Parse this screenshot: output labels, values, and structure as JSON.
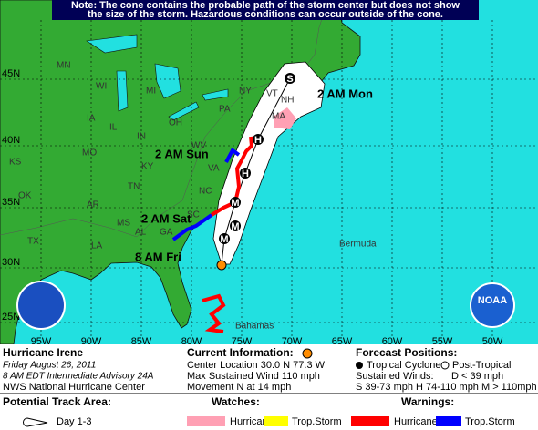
{
  "note": [
    "Note: The cone contains the probable path of the storm center but does not show",
    "the size of the storm. Hazardous conditions can occur outside of the cone."
  ],
  "map": {
    "lat_labels": [
      "45N",
      "40N",
      "35N",
      "30N",
      "25N"
    ],
    "lon_labels": [
      "95W",
      "90W",
      "85W",
      "80W",
      "75W",
      "70W",
      "65W",
      "60W",
      "55W",
      "50W"
    ],
    "states": [
      "MN",
      "WI",
      "MI",
      "IA",
      "IL",
      "IN",
      "OH",
      "PA",
      "NY",
      "VT",
      "NH",
      "MA",
      "KS",
      "MO",
      "KY",
      "WV",
      "VA",
      "TN",
      "NC",
      "OK",
      "AR",
      "MS",
      "AL",
      "GA",
      "SC",
      "LA",
      "TX"
    ],
    "times": [
      "2 AM Mon",
      "2 AM Sun",
      "2 AM Sat",
      "8 AM Fri"
    ],
    "places": [
      "Bermuda",
      "Bahamas"
    ],
    "track_points": [
      "M",
      "M",
      "M",
      "H",
      "H",
      "S"
    ],
    "noaa": "NOAA"
  },
  "storm": {
    "name": "Hurricane Irene",
    "date": "Friday   August 26, 2011",
    "advisory": "8 AM EDT Intermediate Advisory 24A",
    "center": "NWS National Hurricane Center"
  },
  "current": {
    "title": "Current Information:",
    "lines": [
      "Center Location 30.0 N  77.3 W",
      "Max Sustained Wind  110 mph",
      "Movement N at  14 mph"
    ]
  },
  "forecast": {
    "title": "Forecast Positions:",
    "tropical": "Tropical Cyclone",
    "post": "Post-Tropical",
    "winds": "Sustained Winds:",
    "d": "D  < 39 mph",
    "shm": "S  39-73 mph  H  74-110 mph  M  > 110mph"
  },
  "legend": {
    "track_title": "Potential Track Area:",
    "day": "Day 1-3",
    "watches": "Watches:",
    "warnings": "Warnings:",
    "w_hurr": "Hurricane",
    "w_ts": "Trop.Storm",
    "x_hurr": "Hurricane",
    "x_ts": "Trop.Storm"
  }
}
